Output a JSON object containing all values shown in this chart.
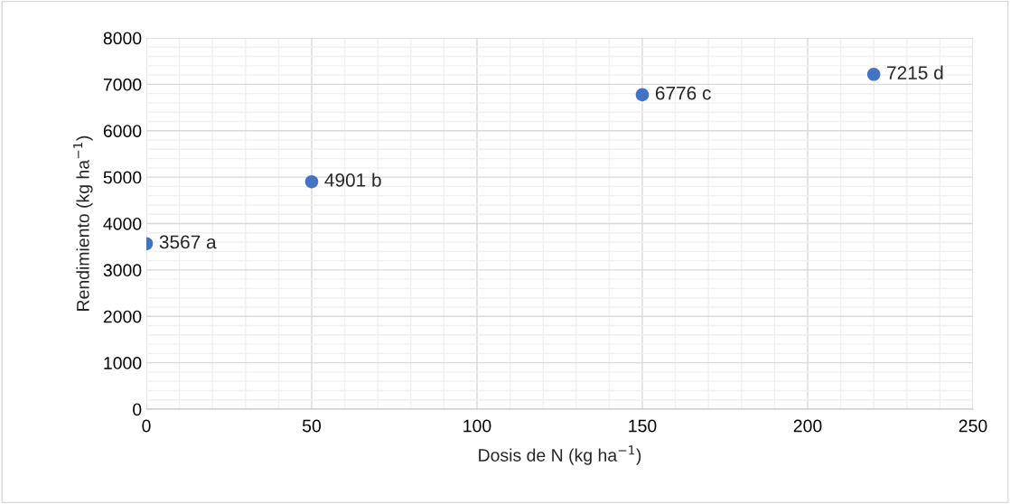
{
  "chart_data": {
    "type": "scatter",
    "xlabel": "Dosis de N (kg ha$^{−1}$)",
    "ylabel": "Rendimiento (kg ha$^{−1}$)",
    "x": [
      0,
      50,
      150,
      220
    ],
    "series": [
      {
        "color": "#4472c4",
        "values": [
          3567,
          4901,
          6776,
          7215
        ],
        "value_labels": [
          "3567 a",
          "4901 b",
          "6776 c",
          "7215 d"
        ]
      }
    ],
    "marker": "circle",
    "xlim": [
      0,
      250
    ],
    "xticks": [
      0,
      {
        "value": 10,
        "label": null
      },
      {
        "value": 20,
        "label": null
      },
      {
        "value": 30,
        "label": null
      },
      {
        "value": 40,
        "label": null
      },
      50,
      {
        "value": 60,
        "label": null
      },
      {
        "value": 70,
        "label": null
      },
      {
        "value": 80,
        "label": null
      },
      {
        "value": 90,
        "label": null
      },
      100,
      {
        "value": 110,
        "label": null
      },
      {
        "value": 120,
        "label": null
      },
      {
        "value": 130,
        "label": null
      },
      {
        "value": 140,
        "label": null
      },
      150,
      {
        "value": 160,
        "label": null
      },
      {
        "value": 170,
        "label": null
      },
      {
        "value": 180,
        "label": null
      },
      {
        "value": 190,
        "label": null
      },
      200,
      {
        "value": 210,
        "label": null
      },
      {
        "value": 220,
        "label": null
      },
      {
        "value": 230,
        "label": null
      },
      {
        "value": 240,
        "label": null
      },
      250
    ],
    "ylim": [
      0,
      8000
    ],
    "yticks": [
      0,
      {
        "value": 200,
        "label": null
      },
      {
        "value": 400,
        "label": null
      },
      {
        "value": 600,
        "label": null
      },
      {
        "value": 800,
        "label": null
      },
      1000,
      {
        "value": 1200,
        "label": null
      },
      {
        "value": 1400,
        "label": null
      },
      {
        "value": 1600,
        "label": null
      },
      {
        "value": 1800,
        "label": null
      },
      2000,
      {
        "value": 2200,
        "label": null
      },
      {
        "value": 2400,
        "label": null
      },
      {
        "value": 2600,
        "label": null
      },
      {
        "value": 2800,
        "label": null
      },
      3000,
      {
        "value": 3200,
        "label": null
      },
      {
        "value": 3400,
        "label": null
      },
      {
        "value": 3600,
        "label": null
      },
      {
        "value": 3800,
        "label": null
      },
      4000,
      {
        "value": 4200,
        "label": null
      },
      {
        "value": 4400,
        "label": null
      },
      {
        "value": 4600,
        "label": null
      },
      {
        "value": 4800,
        "label": null
      },
      5000,
      {
        "value": 5200,
        "label": null
      },
      {
        "value": 5400,
        "label": null
      },
      {
        "value": 5600,
        "label": null
      },
      {
        "value": 5800,
        "label": null
      },
      6000,
      {
        "value": 6200,
        "label": null
      },
      {
        "value": 6400,
        "label": null
      },
      {
        "value": 6600,
        "label": null
      },
      {
        "value": 6800,
        "label": null
      },
      7000,
      {
        "value": 7200,
        "label": null
      },
      {
        "value": 7400,
        "label": null
      },
      {
        "value": 7600,
        "label": null
      },
      {
        "value": 7800,
        "label": null
      },
      8000
    ],
    "grid": true
  }
}
